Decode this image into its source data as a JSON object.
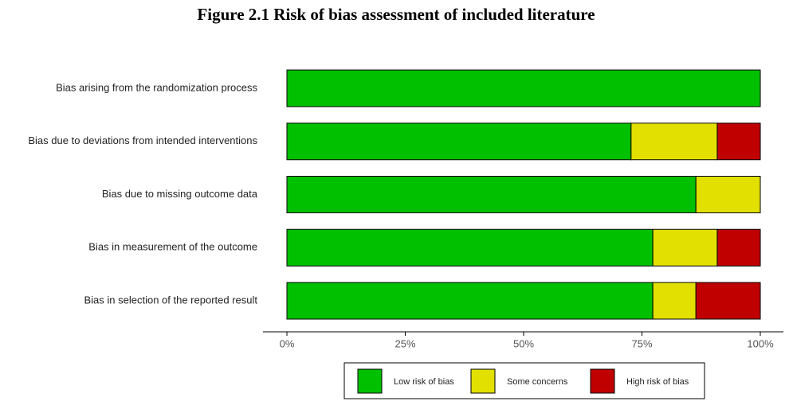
{
  "chart_data": {
    "type": "stacked-bar-horizontal",
    "title": "Figure 2.1 Risk of bias assessment of included literature",
    "categories": [
      "Bias arising from the randomization process",
      "Bias due to deviations from intended interventions",
      "Bias due to missing outcome data",
      "Bias in measurement of the outcome",
      "Bias in selection of the reported result"
    ],
    "series": [
      {
        "name": "Low risk of bias",
        "color": "#00c000",
        "values": [
          100,
          72.7,
          86.4,
          77.3,
          77.3
        ]
      },
      {
        "name": "Some concerns",
        "color": "#e2e000",
        "values": [
          0,
          18.2,
          13.6,
          13.6,
          9.1
        ]
      },
      {
        "name": "High risk of bias",
        "color": "#c00000",
        "values": [
          0,
          9.1,
          0,
          9.1,
          13.6
        ]
      }
    ],
    "xlim": [
      0,
      100
    ],
    "xticks": [
      {
        "value": 0,
        "label": "0%"
      },
      {
        "value": 25,
        "label": "25%"
      },
      {
        "value": 50,
        "label": "50%"
      },
      {
        "value": 75,
        "label": "75%"
      },
      {
        "value": 100,
        "label": "100%"
      }
    ],
    "legend": "bottom"
  }
}
